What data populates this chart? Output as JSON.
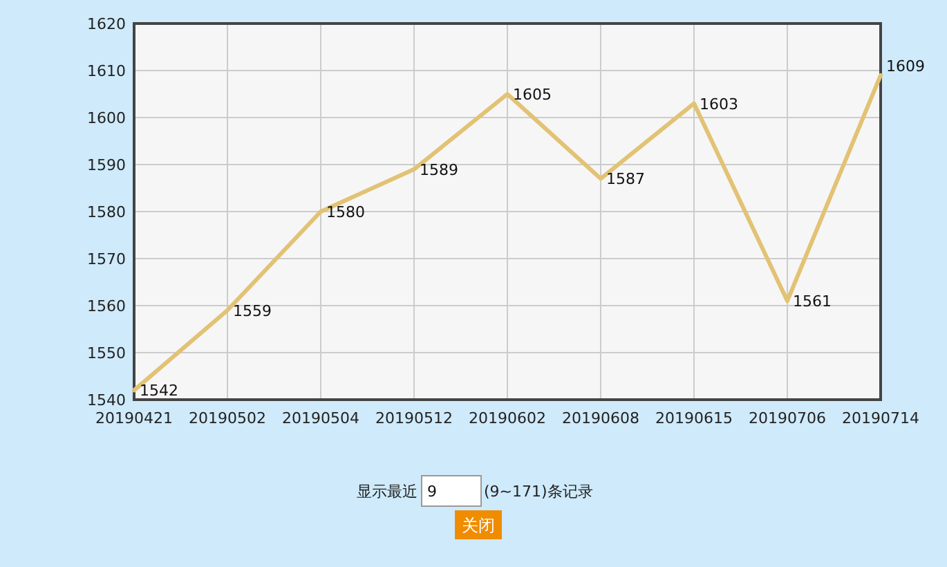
{
  "chart_data": {
    "type": "line",
    "categories": [
      "20190421",
      "20190502",
      "20190504",
      "20190512",
      "20190602",
      "20190608",
      "20190615",
      "20190706",
      "20190714"
    ],
    "values": [
      1542,
      1559,
      1580,
      1589,
      1605,
      1587,
      1603,
      1561,
      1609
    ],
    "color": "#e2c274",
    "ylim": [
      1540,
      1620
    ],
    "yticks": [
      1540,
      1550,
      1560,
      1570,
      1580,
      1590,
      1600,
      1610,
      1620
    ],
    "grid": true,
    "data_labels": true,
    "annotations": [
      "显示最近",
      "9",
      "(9~171)条记录",
      "关闭"
    ]
  }
}
